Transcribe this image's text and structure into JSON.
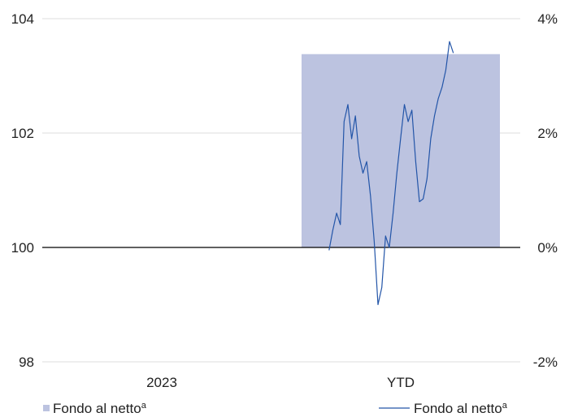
{
  "chart_data": {
    "type": "bar",
    "categories": [
      "2023",
      "YTD"
    ],
    "left_axis": {
      "ticks": [
        "104",
        "102",
        "100",
        "98"
      ],
      "ylim": [
        98,
        104
      ]
    },
    "right_axis": {
      "ticks": [
        "4%",
        "2%",
        "0%",
        "-2%"
      ],
      "ylim": [
        -2,
        4
      ]
    },
    "bar_series": {
      "name": "Fondo al netto",
      "superscript": "a",
      "axis": "right",
      "color": "#bcc3e0",
      "values": [
        0,
        3.38
      ]
    },
    "line_series": {
      "name": "Fondo al netto",
      "superscript": "a",
      "axis": "left",
      "color": "#2355a8",
      "x_start": 0.6,
      "x_end": 0.86,
      "values": [
        99.95,
        100.3,
        100.6,
        100.4,
        102.2,
        102.5,
        101.9,
        102.3,
        101.6,
        101.3,
        101.5,
        100.9,
        100.1,
        99.0,
        99.3,
        100.2,
        100.0,
        100.6,
        101.3,
        101.9,
        102.5,
        102.2,
        102.4,
        101.5,
        100.8,
        100.85,
        101.2,
        101.9,
        102.3,
        102.6,
        102.8,
        103.1,
        103.6,
        103.4
      ]
    },
    "legend": {
      "left_label": "Fondo al netto",
      "right_label": "Fondo al netto",
      "superscript": "a"
    }
  }
}
